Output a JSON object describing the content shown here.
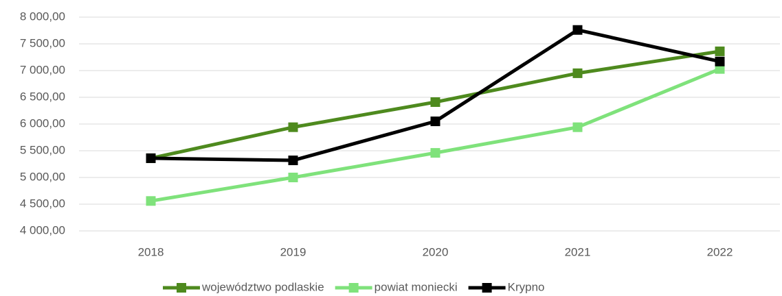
{
  "chart_data": {
    "type": "line",
    "categories": [
      "2018",
      "2019",
      "2020",
      "2021",
      "2022"
    ],
    "series": [
      {
        "name": "województwo podlaskie",
        "color": "#4e8a1e",
        "values": [
          5360,
          5940,
          6410,
          6950,
          7360
        ]
      },
      {
        "name": "powiat moniecki",
        "color": "#7fe27b",
        "values": [
          4560,
          5000,
          5460,
          5940,
          7030
        ]
      },
      {
        "name": "Krypno",
        "color": "#000000",
        "values": [
          5360,
          5320,
          6050,
          7760,
          7170
        ]
      }
    ],
    "ylim": [
      4000,
      8000
    ],
    "yticks": [
      {
        "value": 4000,
        "label": "4 000,00"
      },
      {
        "value": 4500,
        "label": "4 500,00"
      },
      {
        "value": 5000,
        "label": "5 000,00"
      },
      {
        "value": 5500,
        "label": "5 500,00"
      },
      {
        "value": 6000,
        "label": "6 000,00"
      },
      {
        "value": 6500,
        "label": "6 500,00"
      },
      {
        "value": 7000,
        "label": "7 000,00"
      },
      {
        "value": 7500,
        "label": "7 500,00"
      },
      {
        "value": 8000,
        "label": "8 000,00"
      }
    ],
    "grid": true,
    "legend": "bottom"
  }
}
